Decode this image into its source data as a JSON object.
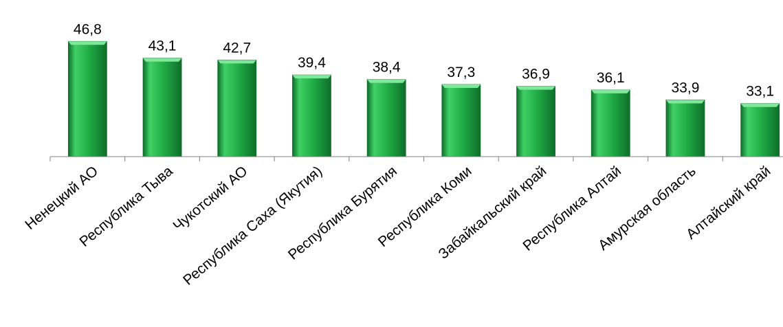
{
  "chart_data": {
    "type": "bar",
    "categories": [
      "Ненецкий АО",
      "Республика Тыва",
      "Чукотский АО",
      "Республика Саха (Якутия)",
      "Республика Бурятия",
      "Республика Коми",
      "Забайкальский край",
      "Республика Алтай",
      "Амурская область",
      "Алтайский край"
    ],
    "values": [
      46.8,
      43.1,
      42.7,
      39.4,
      38.4,
      37.3,
      36.9,
      36.1,
      33.9,
      33.1
    ],
    "value_labels": [
      "46,8",
      "43,1",
      "42,7",
      "39,4",
      "38,4",
      "37,3",
      "36,9",
      "36,1",
      "33,9",
      "33,1"
    ],
    "title": "",
    "xlabel": "",
    "ylabel": "",
    "ylim": [
      21.4,
      49.0
    ],
    "grid": false,
    "legend": "none",
    "colors": {
      "bar_fill": "#1faa45",
      "bar_light": "#3fd066",
      "bar_dark": "#0f6e2a",
      "bar_top": "#7fe89a",
      "axis": "#808080",
      "text": "#000000"
    }
  }
}
